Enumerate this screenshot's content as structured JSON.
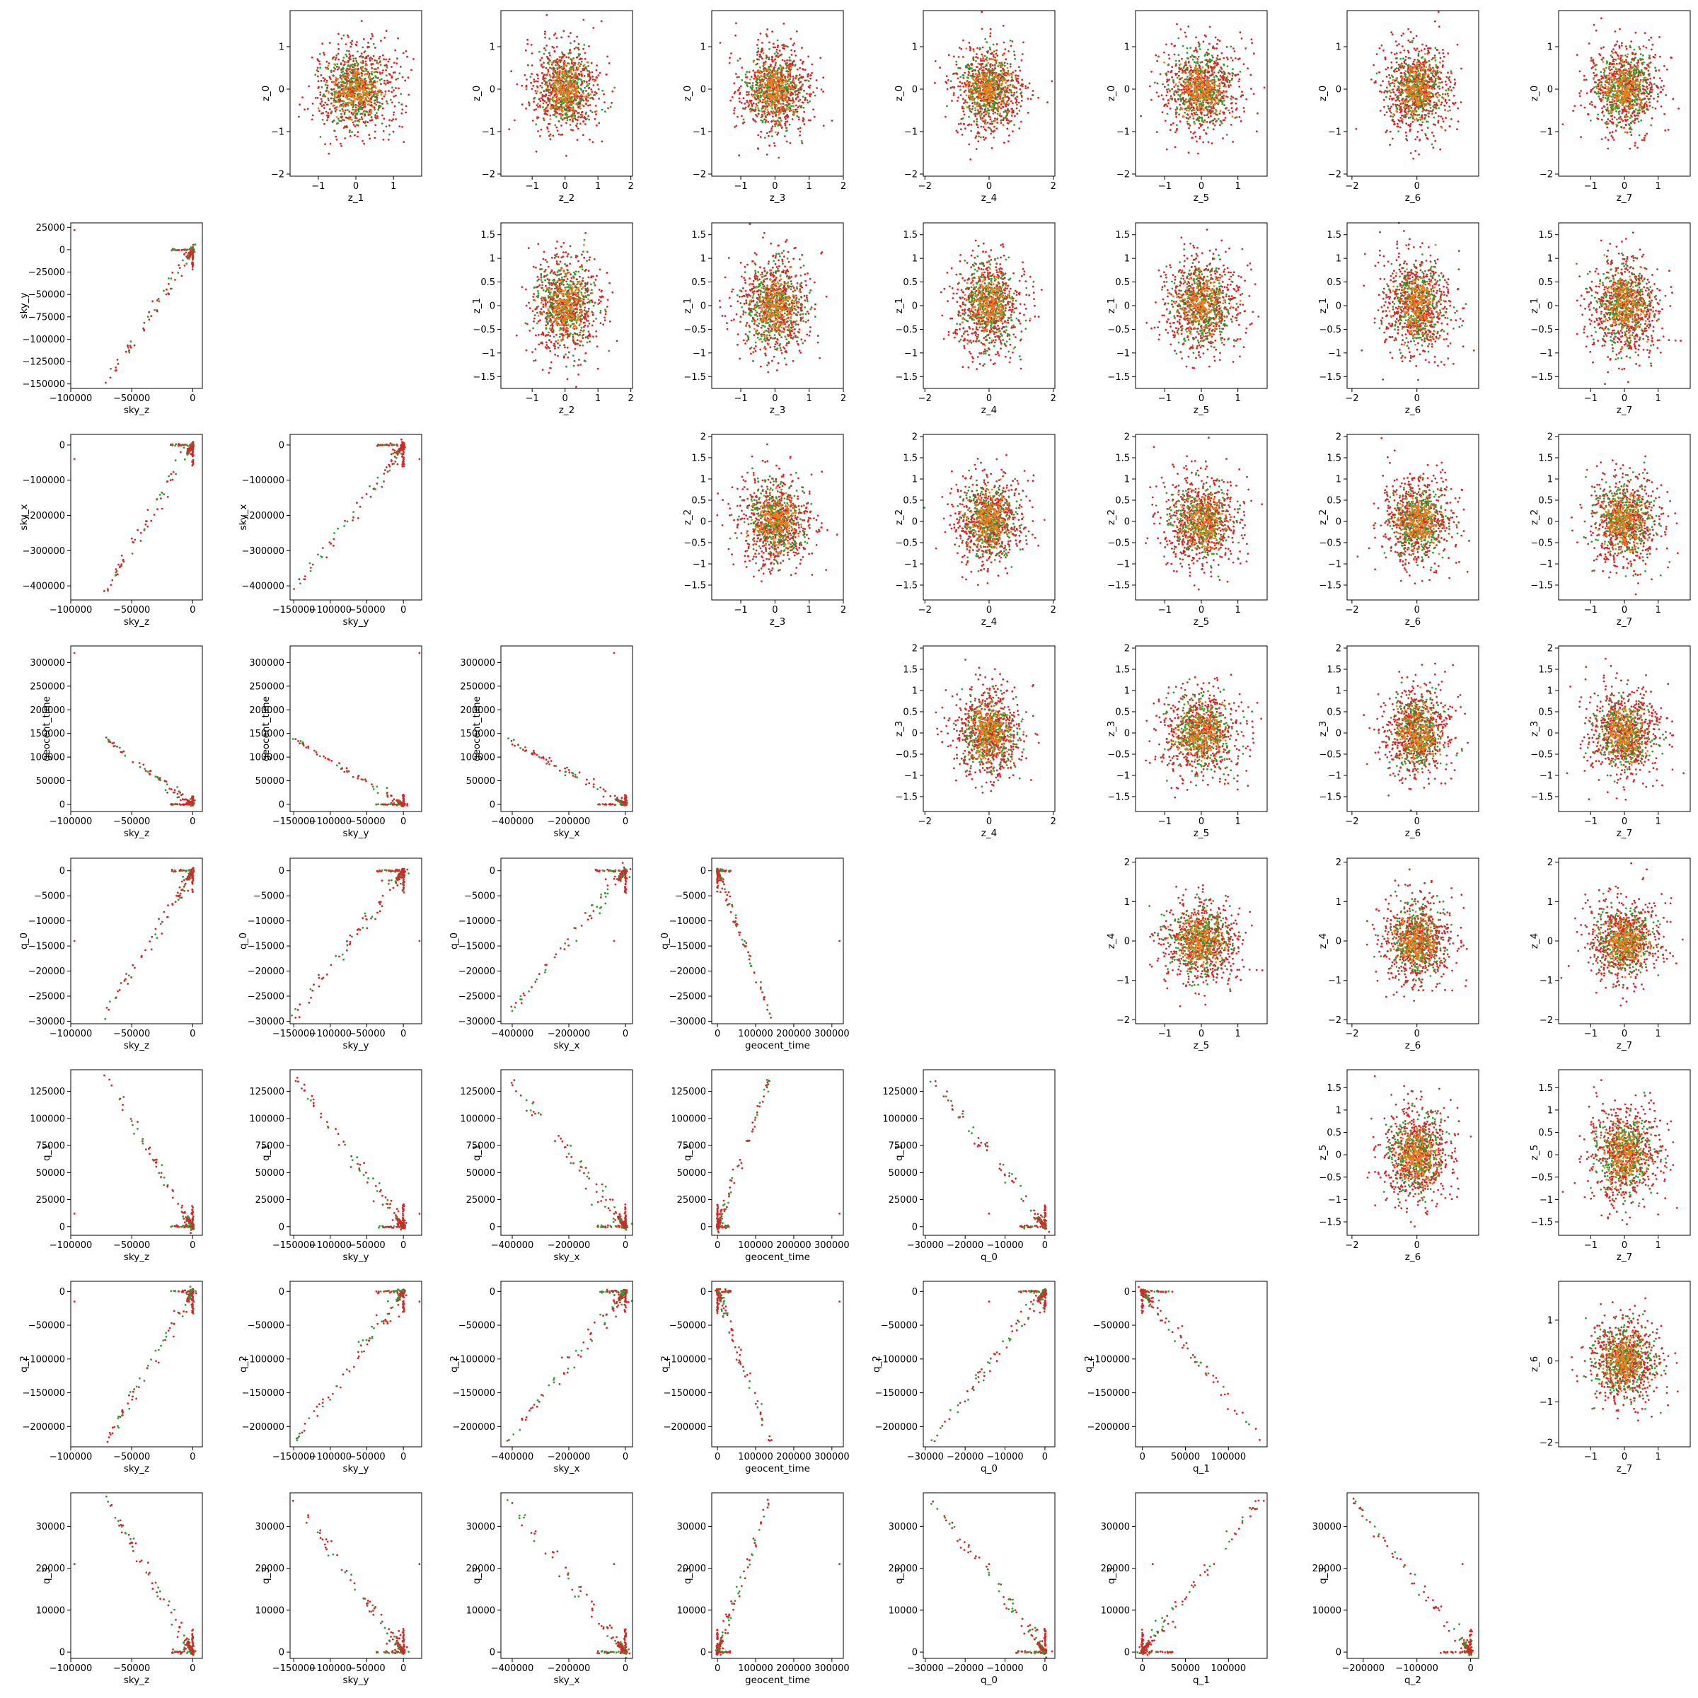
{
  "figure": {
    "rows": 8,
    "cols": 8,
    "point_colors": {
      "series_a": "#2ca02c",
      "series_b": "#d62728"
    },
    "layout_note_hidden": false
  },
  "variables": {
    "lower": [
      "sky_z",
      "sky_y",
      "sky_x",
      "geocent_time",
      "q_0",
      "q_1",
      "q_2",
      "q_3"
    ],
    "upper": [
      "z_0",
      "z_1",
      "z_2",
      "z_3",
      "z_4",
      "z_5",
      "z_6",
      "z_7"
    ]
  },
  "axes": {
    "sky_z": {
      "range": [
        -100000,
        8000
      ],
      "ticks": [
        -100000,
        -50000,
        0
      ],
      "tick_labels": [
        "−100000",
        "−50000",
        "0"
      ]
    },
    "sky_y": {
      "range": [
        -155000,
        25000
      ],
      "ticks": [
        -150000,
        -100000,
        -50000,
        0
      ],
      "tick_labels": [
        "−150000",
        "−100000",
        "−50000",
        "0"
      ]
    },
    "sky_x": {
      "range": [
        -440000,
        25000
      ],
      "ticks": [
        -400000,
        -200000,
        0
      ],
      "tick_labels": [
        "−400000",
        "−200000",
        "0"
      ]
    },
    "geocent_time": {
      "range": [
        -15000,
        330000
      ],
      "ticks": [
        0,
        100000,
        200000,
        300000
      ],
      "tick_labels": [
        "0",
        "100000",
        "200000",
        "300000"
      ]
    },
    "q_0": {
      "range": [
        -30500,
        2500
      ],
      "ticks": [
        -30000,
        -20000,
        -10000,
        0
      ],
      "tick_labels": [
        "−30000",
        "−20000",
        "−10000",
        "0"
      ]
    },
    "q_1": {
      "range": [
        -8000,
        145000
      ],
      "ticks": [
        0,
        50000,
        100000
      ],
      "tick_labels": [
        "0",
        "50000",
        "100000"
      ]
    },
    "q_2": {
      "range": [
        -230000,
        15000
      ],
      "ticks": [
        -200000,
        -100000,
        0
      ],
      "tick_labels": [
        "−200000",
        "−100000",
        "0"
      ]
    },
    "q_3": {
      "range": [
        -1500,
        38000
      ],
      "ticks": [
        0,
        10000,
        20000,
        30000
      ],
      "tick_labels": [
        "0",
        "10000",
        "20000",
        "30000"
      ]
    }
  },
  "y_axes_lower": {
    "sky_y": {
      "range": [
        -155000,
        30000
      ],
      "ticks": [
        -150000,
        -125000,
        -100000,
        -75000,
        -50000,
        -25000,
        0,
        25000
      ],
      "tick_labels": [
        "−150000",
        "−125000",
        "−100000",
        "−75000",
        "−50000",
        "−25000",
        "0",
        "25000"
      ]
    },
    "sky_x": {
      "range": [
        -440000,
        30000
      ],
      "ticks": [
        -400000,
        -300000,
        -200000,
        -100000,
        0
      ],
      "tick_labels": [
        "−400000",
        "−300000",
        "−200000",
        "−100000",
        "0"
      ]
    },
    "geocent_time": {
      "range": [
        -15000,
        335000
      ],
      "ticks": [
        0,
        50000,
        100000,
        150000,
        200000,
        250000,
        300000
      ],
      "tick_labels": [
        "0",
        "50000",
        "100000",
        "150000",
        "200000",
        "250000",
        "300000"
      ]
    },
    "q_0": {
      "range": [
        -30500,
        2500
      ],
      "ticks": [
        -30000,
        -25000,
        -20000,
        -15000,
        -10000,
        -5000,
        0
      ],
      "tick_labels": [
        "−30000",
        "−25000",
        "−20000",
        "−15000",
        "−10000",
        "−5000",
        "0"
      ]
    },
    "q_1": {
      "range": [
        -8000,
        145000
      ],
      "ticks": [
        0,
        25000,
        50000,
        75000,
        100000,
        125000
      ],
      "tick_labels": [
        "0",
        "25000",
        "50000",
        "75000",
        "100000",
        "125000"
      ]
    },
    "q_2": {
      "range": [
        -230000,
        15000
      ],
      "ticks": [
        -200000,
        -150000,
        -100000,
        -50000,
        0
      ],
      "tick_labels": [
        "−200000",
        "−150000",
        "−100000",
        "−50000",
        "0"
      ]
    },
    "q_3": {
      "range": [
        -1500,
        38000
      ],
      "ticks": [
        0,
        10000,
        20000,
        30000
      ],
      "tick_labels": [
        "0",
        "10000",
        "20000",
        "30000"
      ]
    }
  },
  "chart_data": {
    "type": "scatter",
    "title": "",
    "grid": false,
    "description_lower": "pairwise scatter of sky_z, sky_y, sky_x, geocent_time, q_0, q_1, q_2, q_3",
    "description_upper": "pairwise scatter of latent z_0..z_7, approximately standard normal clouds",
    "series": [
      {
        "name": "",
        "color": "#2ca02c"
      },
      {
        "name": "",
        "color": "#d62728"
      }
    ],
    "lower_line_endpoints": {
      "sky_z": -72000,
      "sky_y": -150000,
      "sky_x": -420000,
      "geocent_time": 140000,
      "q_0": -29000,
      "q_1": 140000,
      "q_2": -225000,
      "q_3": 37000
    },
    "outlier_point": {
      "sky_z": -97000,
      "sky_y": 22000,
      "sky_x": -40000,
      "geocent_time": 320000,
      "q_0": -14000,
      "q_1": 12000,
      "q_2": -15000,
      "q_3": 21000
    },
    "latent_ranges": {
      "z_0": {
        "ticks": [
          -2,
          -1,
          0,
          1
        ],
        "range": [
          -2.05,
          1.85
        ]
      },
      "z_1": {
        "ticks": [
          -1.5,
          -1.0,
          -0.5,
          0.0,
          0.5,
          1.0,
          1.5
        ],
        "range": [
          -1.75,
          1.75
        ]
      },
      "z_2": {
        "ticks": [
          -1.5,
          -1.0,
          -0.5,
          0.0,
          0.5,
          1.0,
          1.5,
          2.0
        ],
        "range": [
          -1.85,
          2.05
        ]
      },
      "z_3": {
        "ticks": [
          -1.5,
          -1.0,
          -0.5,
          0.0,
          0.5,
          1.0,
          1.5,
          2.0
        ],
        "range": [
          -1.85,
          2.05
        ]
      },
      "z_4": {
        "ticks": [
          -2,
          -1,
          0,
          1,
          2
        ],
        "range": [
          -2.1,
          2.1
        ]
      },
      "z_5": {
        "ticks": [
          -1.5,
          -1.0,
          -0.5,
          0.0,
          0.5,
          1.0,
          1.5
        ],
        "range": [
          -1.8,
          1.9
        ]
      },
      "z_6": {
        "ticks": [
          -2,
          -1,
          0,
          1
        ],
        "range": [
          -2.1,
          1.95
        ]
      },
      "z_7": {
        "ticks": [
          -1,
          0,
          1
        ],
        "range": [
          -1.85,
          1.85
        ]
      }
    },
    "latent_x_ticks": {
      "z_1": [
        -1,
        0,
        1
      ],
      "z_2": [
        -1,
        0,
        1,
        2
      ],
      "z_3": [
        -1,
        0,
        1,
        2
      ],
      "z_4": [
        -2,
        0,
        2
      ],
      "z_5": [
        -1,
        0,
        1
      ],
      "z_6": [
        -2,
        0
      ],
      "z_7": [
        -1,
        0,
        1
      ]
    },
    "latent_x_ranges": {
      "z_1": [
        -1.75,
        1.75
      ],
      "z_2": [
        -1.95,
        2.05
      ],
      "z_3": [
        -1.85,
        2.0
      ],
      "z_4": [
        -2.05,
        2.05
      ],
      "z_5": [
        -1.8,
        1.8
      ],
      "z_6": [
        -2.15,
        1.9
      ],
      "z_7": [
        -1.95,
        1.95
      ]
    }
  }
}
